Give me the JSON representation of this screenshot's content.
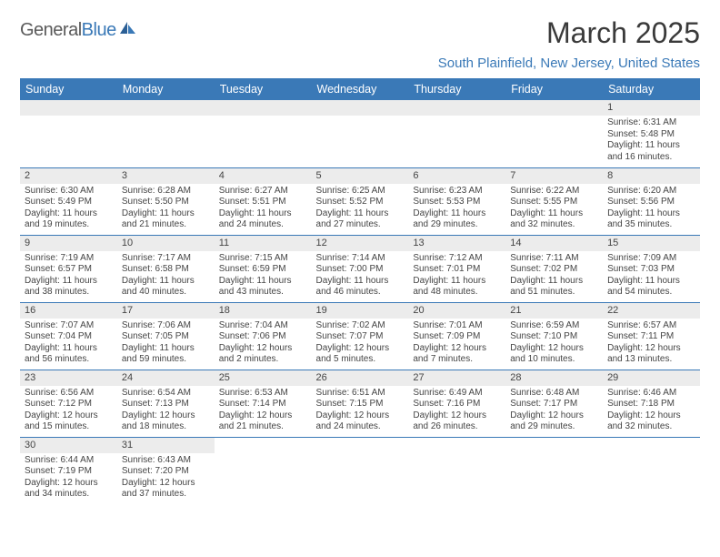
{
  "logo": {
    "text_a": "General",
    "text_b": "Blue"
  },
  "title": "March 2025",
  "location": "South Plainfield, New Jersey, United States",
  "day_names": [
    "Sunday",
    "Monday",
    "Tuesday",
    "Wednesday",
    "Thursday",
    "Friday",
    "Saturday"
  ],
  "colors": {
    "header_bg": "#3a79b7",
    "header_fg": "#ffffff",
    "daynum_bg": "#ececec",
    "row_divider": "#3a79b7",
    "title_color": "#3a3a3a",
    "location_color": "#3a79b7"
  },
  "weeks": [
    [
      null,
      null,
      null,
      null,
      null,
      null,
      {
        "n": "1",
        "sr": "Sunrise: 6:31 AM",
        "ss": "Sunset: 5:48 PM",
        "d1": "Daylight: 11 hours",
        "d2": "and 16 minutes."
      }
    ],
    [
      {
        "n": "2",
        "sr": "Sunrise: 6:30 AM",
        "ss": "Sunset: 5:49 PM",
        "d1": "Daylight: 11 hours",
        "d2": "and 19 minutes."
      },
      {
        "n": "3",
        "sr": "Sunrise: 6:28 AM",
        "ss": "Sunset: 5:50 PM",
        "d1": "Daylight: 11 hours",
        "d2": "and 21 minutes."
      },
      {
        "n": "4",
        "sr": "Sunrise: 6:27 AM",
        "ss": "Sunset: 5:51 PM",
        "d1": "Daylight: 11 hours",
        "d2": "and 24 minutes."
      },
      {
        "n": "5",
        "sr": "Sunrise: 6:25 AM",
        "ss": "Sunset: 5:52 PM",
        "d1": "Daylight: 11 hours",
        "d2": "and 27 minutes."
      },
      {
        "n": "6",
        "sr": "Sunrise: 6:23 AM",
        "ss": "Sunset: 5:53 PM",
        "d1": "Daylight: 11 hours",
        "d2": "and 29 minutes."
      },
      {
        "n": "7",
        "sr": "Sunrise: 6:22 AM",
        "ss": "Sunset: 5:55 PM",
        "d1": "Daylight: 11 hours",
        "d2": "and 32 minutes."
      },
      {
        "n": "8",
        "sr": "Sunrise: 6:20 AM",
        "ss": "Sunset: 5:56 PM",
        "d1": "Daylight: 11 hours",
        "d2": "and 35 minutes."
      }
    ],
    [
      {
        "n": "9",
        "sr": "Sunrise: 7:19 AM",
        "ss": "Sunset: 6:57 PM",
        "d1": "Daylight: 11 hours",
        "d2": "and 38 minutes."
      },
      {
        "n": "10",
        "sr": "Sunrise: 7:17 AM",
        "ss": "Sunset: 6:58 PM",
        "d1": "Daylight: 11 hours",
        "d2": "and 40 minutes."
      },
      {
        "n": "11",
        "sr": "Sunrise: 7:15 AM",
        "ss": "Sunset: 6:59 PM",
        "d1": "Daylight: 11 hours",
        "d2": "and 43 minutes."
      },
      {
        "n": "12",
        "sr": "Sunrise: 7:14 AM",
        "ss": "Sunset: 7:00 PM",
        "d1": "Daylight: 11 hours",
        "d2": "and 46 minutes."
      },
      {
        "n": "13",
        "sr": "Sunrise: 7:12 AM",
        "ss": "Sunset: 7:01 PM",
        "d1": "Daylight: 11 hours",
        "d2": "and 48 minutes."
      },
      {
        "n": "14",
        "sr": "Sunrise: 7:11 AM",
        "ss": "Sunset: 7:02 PM",
        "d1": "Daylight: 11 hours",
        "d2": "and 51 minutes."
      },
      {
        "n": "15",
        "sr": "Sunrise: 7:09 AM",
        "ss": "Sunset: 7:03 PM",
        "d1": "Daylight: 11 hours",
        "d2": "and 54 minutes."
      }
    ],
    [
      {
        "n": "16",
        "sr": "Sunrise: 7:07 AM",
        "ss": "Sunset: 7:04 PM",
        "d1": "Daylight: 11 hours",
        "d2": "and 56 minutes."
      },
      {
        "n": "17",
        "sr": "Sunrise: 7:06 AM",
        "ss": "Sunset: 7:05 PM",
        "d1": "Daylight: 11 hours",
        "d2": "and 59 minutes."
      },
      {
        "n": "18",
        "sr": "Sunrise: 7:04 AM",
        "ss": "Sunset: 7:06 PM",
        "d1": "Daylight: 12 hours",
        "d2": "and 2 minutes."
      },
      {
        "n": "19",
        "sr": "Sunrise: 7:02 AM",
        "ss": "Sunset: 7:07 PM",
        "d1": "Daylight: 12 hours",
        "d2": "and 5 minutes."
      },
      {
        "n": "20",
        "sr": "Sunrise: 7:01 AM",
        "ss": "Sunset: 7:09 PM",
        "d1": "Daylight: 12 hours",
        "d2": "and 7 minutes."
      },
      {
        "n": "21",
        "sr": "Sunrise: 6:59 AM",
        "ss": "Sunset: 7:10 PM",
        "d1": "Daylight: 12 hours",
        "d2": "and 10 minutes."
      },
      {
        "n": "22",
        "sr": "Sunrise: 6:57 AM",
        "ss": "Sunset: 7:11 PM",
        "d1": "Daylight: 12 hours",
        "d2": "and 13 minutes."
      }
    ],
    [
      {
        "n": "23",
        "sr": "Sunrise: 6:56 AM",
        "ss": "Sunset: 7:12 PM",
        "d1": "Daylight: 12 hours",
        "d2": "and 15 minutes."
      },
      {
        "n": "24",
        "sr": "Sunrise: 6:54 AM",
        "ss": "Sunset: 7:13 PM",
        "d1": "Daylight: 12 hours",
        "d2": "and 18 minutes."
      },
      {
        "n": "25",
        "sr": "Sunrise: 6:53 AM",
        "ss": "Sunset: 7:14 PM",
        "d1": "Daylight: 12 hours",
        "d2": "and 21 minutes."
      },
      {
        "n": "26",
        "sr": "Sunrise: 6:51 AM",
        "ss": "Sunset: 7:15 PM",
        "d1": "Daylight: 12 hours",
        "d2": "and 24 minutes."
      },
      {
        "n": "27",
        "sr": "Sunrise: 6:49 AM",
        "ss": "Sunset: 7:16 PM",
        "d1": "Daylight: 12 hours",
        "d2": "and 26 minutes."
      },
      {
        "n": "28",
        "sr": "Sunrise: 6:48 AM",
        "ss": "Sunset: 7:17 PM",
        "d1": "Daylight: 12 hours",
        "d2": "and 29 minutes."
      },
      {
        "n": "29",
        "sr": "Sunrise: 6:46 AM",
        "ss": "Sunset: 7:18 PM",
        "d1": "Daylight: 12 hours",
        "d2": "and 32 minutes."
      }
    ],
    [
      {
        "n": "30",
        "sr": "Sunrise: 6:44 AM",
        "ss": "Sunset: 7:19 PM",
        "d1": "Daylight: 12 hours",
        "d2": "and 34 minutes."
      },
      {
        "n": "31",
        "sr": "Sunrise: 6:43 AM",
        "ss": "Sunset: 7:20 PM",
        "d1": "Daylight: 12 hours",
        "d2": "and 37 minutes."
      },
      null,
      null,
      null,
      null,
      null
    ]
  ]
}
